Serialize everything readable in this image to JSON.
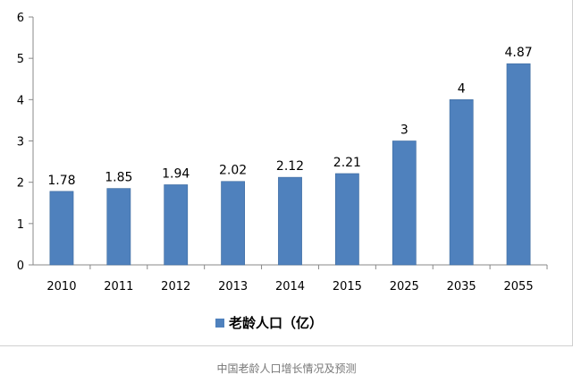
{
  "chart_data": {
    "type": "bar",
    "categories": [
      "2010",
      "2011",
      "2012",
      "2013",
      "2014",
      "2015",
      "2025",
      "2035",
      "2055"
    ],
    "series": [
      {
        "name": "老龄人口（亿）",
        "values": [
          1.78,
          1.85,
          1.94,
          2.02,
          2.12,
          2.21,
          3,
          4,
          4.87
        ]
      }
    ],
    "data_labels": [
      "1.78",
      "1.85",
      "1.94",
      "2.02",
      "2.12",
      "2.21",
      "3",
      "4",
      "4.87"
    ],
    "y_ticks": [
      "0",
      "1",
      "2",
      "3",
      "4",
      "5",
      "6"
    ],
    "ylim": [
      0,
      6
    ],
    "grid": false,
    "legend_position": "bottom",
    "bar_color": "#4f81bd"
  },
  "caption": "中国老龄人口增长情况及预测"
}
